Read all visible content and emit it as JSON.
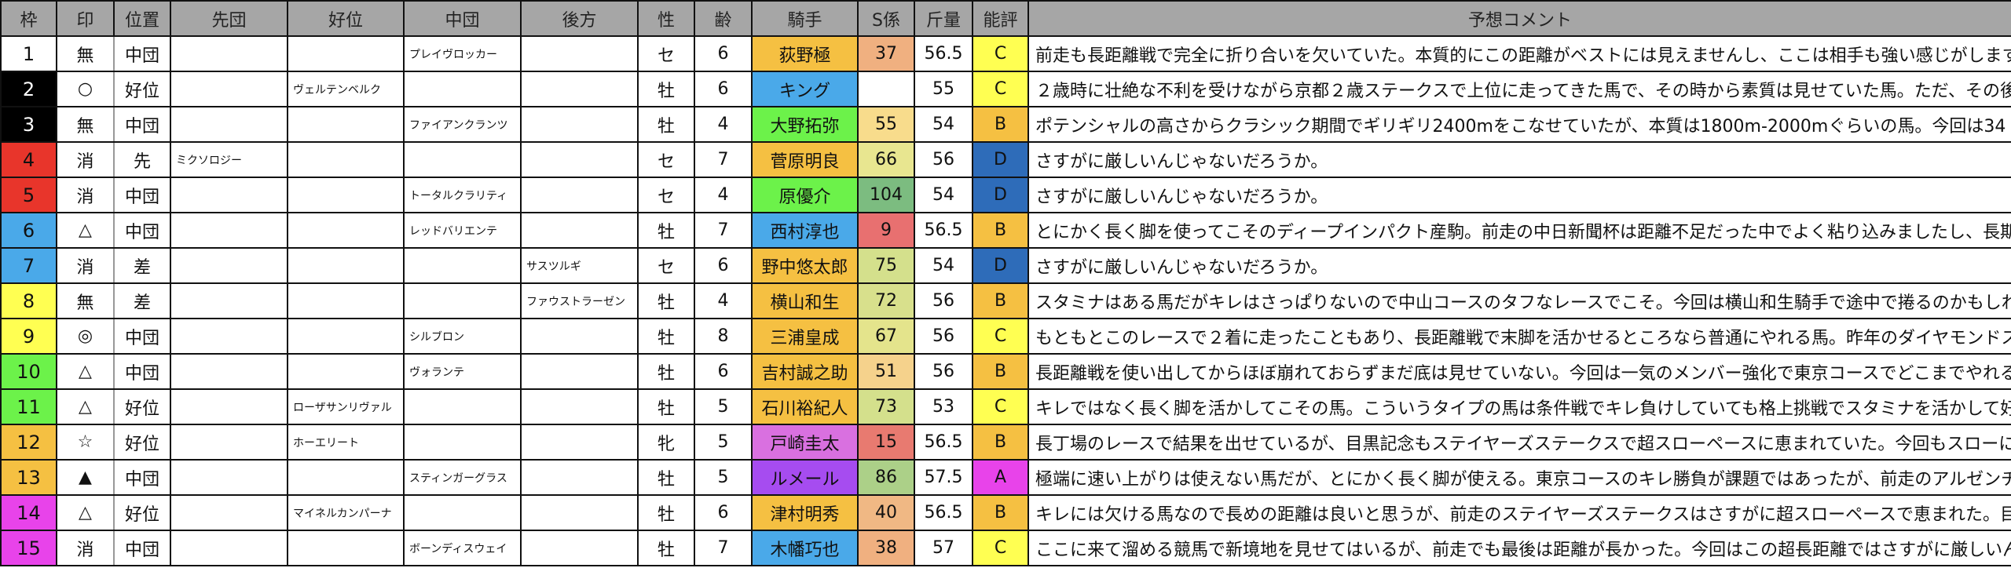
{
  "headers": [
    "枠",
    "印",
    "位置",
    "先団",
    "好位",
    "中団",
    "後方",
    "性",
    "齢",
    "騎手",
    "S係",
    "斤量",
    "能評",
    "予想コメント"
  ],
  "colors": {
    "frame": {
      "1": "#ffffff",
      "2": "#000000",
      "3": "#000000",
      "4": "#e8352b",
      "5": "#e8352b",
      "6": "#4aa9e9",
      "7": "#4aa9e9",
      "8": "#ffff52",
      "9": "#ffff52",
      "10": "#6cf24a",
      "11": "#6cf24a",
      "12": "#f5c042",
      "13": "#f5c042",
      "14": "#e843ea",
      "15": "#e843ea"
    },
    "rating": {
      "A": "#e843ea",
      "B": "#f5c042",
      "C": "#ffff52",
      "D": "#2e6cb9"
    },
    "header_bg": "#a6a6a6"
  },
  "rows": [
    {
      "frame": "1",
      "mark": "無",
      "position": "中団",
      "sendan": "",
      "koui": "",
      "chudan": "プレイヴロッカー",
      "koho": "",
      "sex": "セ",
      "age": "6",
      "jockey": "荻野極",
      "jockey_color": "#f5c042",
      "s": "37",
      "s_color": "#f0b080",
      "weight": "56.5",
      "rating": "C",
      "comment": "前走も長距離戦で完全に折り合いを欠いていた。本質的にこの距離がベストには見えませんし、ここは相手も強い感じがします。"
    },
    {
      "frame": "2",
      "mark": "○",
      "position": "好位",
      "sendan": "",
      "koui": "ヴェルテンベルク",
      "chudan": "",
      "koho": "",
      "sex": "牡",
      "age": "6",
      "jockey": "キング",
      "jockey_color": "#4aa9e9",
      "s": "",
      "s_color": "#ffffff",
      "weight": "55",
      "rating": "C",
      "comment": "２歳時に壮絶な不利を受けながら京都２歳ステークスで上位に走ってきた馬で、その時から素質は見せていた馬。ただ、その後は"
    },
    {
      "frame": "3",
      "mark": "無",
      "position": "中団",
      "sendan": "",
      "koui": "",
      "chudan": "ファイアンクランツ",
      "koho": "",
      "sex": "牡",
      "age": "4",
      "jockey": "大野拓弥",
      "jockey_color": "#6cf24a",
      "s": "55",
      "s_color": "#f8dc8c",
      "weight": "54",
      "rating": "B",
      "comment": "ポテンシャルの高さからクラシック期間でギリギリ2400mをこなせていたが、本質は1800m-2000mぐらいの馬。今回は34"
    },
    {
      "frame": "4",
      "mark": "消",
      "position": "先",
      "sendan": "ミクソロジー",
      "koui": "",
      "chudan": "",
      "koho": "",
      "sex": "セ",
      "age": "7",
      "jockey": "菅原明良",
      "jockey_color": "#f5c042",
      "s": "66",
      "s_color": "#e8e690",
      "weight": "56",
      "rating": "D",
      "comment": "さすがに厳しいんじゃないだろうか。"
    },
    {
      "frame": "5",
      "mark": "消",
      "position": "中団",
      "sendan": "",
      "koui": "",
      "chudan": "トータルクラリティ",
      "koho": "",
      "sex": "セ",
      "age": "4",
      "jockey": "原優介",
      "jockey_color": "#6cf24a",
      "s": "104",
      "s_color": "#7cbc80",
      "weight": "54",
      "rating": "D",
      "comment": "さすがに厳しいんじゃないだろうか。"
    },
    {
      "frame": "6",
      "mark": "△",
      "position": "中団",
      "sendan": "",
      "koui": "",
      "chudan": "レッドバリエンテ",
      "koho": "",
      "sex": "牡",
      "age": "7",
      "jockey": "西村淳也",
      "jockey_color": "#4aa9e9",
      "s": "9",
      "s_color": "#e87070",
      "weight": "56.5",
      "rating": "B",
      "comment": "とにかく長く脚を使ってこそのディープインパクト産駒。前走の中日新聞杯は距離不足だった中でよく粘り込みましたし、長期休"
    },
    {
      "frame": "7",
      "mark": "消",
      "position": "差",
      "sendan": "",
      "koui": "",
      "chudan": "",
      "koho": "サスツルギ",
      "sex": "セ",
      "age": "6",
      "jockey": "野中悠太郎",
      "jockey_color": "#f5c042",
      "s": "75",
      "s_color": "#d4e08c",
      "weight": "54",
      "rating": "D",
      "comment": "さすがに厳しいんじゃないだろうか。"
    },
    {
      "frame": "8",
      "mark": "無",
      "position": "差",
      "sendan": "",
      "koui": "",
      "chudan": "",
      "koho": "ファウストラーゼン",
      "sex": "牡",
      "age": "4",
      "jockey": "横山和生",
      "jockey_color": "#f5c042",
      "s": "72",
      "s_color": "#d8e08c",
      "weight": "56",
      "rating": "B",
      "comment": "スタミナはある馬だがキレはさっぱりないので中山コースのタフなレースでこそ。今回は横山和生騎手で途中で捲るのかもしれな"
    },
    {
      "frame": "9",
      "mark": "◎",
      "position": "中団",
      "sendan": "",
      "koui": "",
      "chudan": "シルブロン",
      "koho": "",
      "sex": "牡",
      "age": "8",
      "jockey": "三浦皇成",
      "jockey_color": "#f5c042",
      "s": "67",
      "s_color": "#e4e48c",
      "weight": "56",
      "rating": "C",
      "comment": "もともとこのレースで２着に走ったこともあり、長距離戦で末脚を活かせるところなら普通にやれる馬。昨年のダイヤモンドステ"
    },
    {
      "frame": "10",
      "mark": "△",
      "position": "中団",
      "sendan": "",
      "koui": "",
      "chudan": "ヴォランテ",
      "koho": "",
      "sex": "牡",
      "age": "6",
      "jockey": "吉村誠之助",
      "jockey_color": "#f5c042",
      "s": "51",
      "s_color": "#f5d28c",
      "weight": "56",
      "rating": "B",
      "comment": "長距離戦を使い出してからほぼ崩れておらずまだ底は見せていない。今回は一気のメンバー強化で東京コースでどこまでやれるか"
    },
    {
      "frame": "11",
      "mark": "△",
      "position": "好位",
      "sendan": "",
      "koui": "ローザサンリヴァル",
      "chudan": "",
      "koho": "",
      "sex": "牡",
      "age": "5",
      "jockey": "石川裕紀人",
      "jockey_color": "#f5c042",
      "s": "73",
      "s_color": "#d4e08c",
      "weight": "53",
      "rating": "C",
      "comment": "キレではなく長く脚を活かしてこその馬。こういうタイプの馬は条件戦でキレ負けしていても格上挑戦でスタミナを活かして好走"
    },
    {
      "frame": "12",
      "mark": "☆",
      "position": "好位",
      "sendan": "",
      "koui": "ホーエリート",
      "chudan": "",
      "koho": "",
      "sex": "牝",
      "age": "5",
      "jockey": "戸崎圭太",
      "jockey_color": "#d970e0",
      "s": "15",
      "s_color": "#e87a70",
      "weight": "56.5",
      "rating": "B",
      "comment": "長丁場のレースで結果を出せているが、目黒記念もステイヤーズステークスで超スローペースに恵まれていた。今回もスローに恵"
    },
    {
      "frame": "13",
      "mark": "▲",
      "position": "中団",
      "sendan": "",
      "koui": "",
      "chudan": "スティンガーグラス",
      "koho": "",
      "sex": "牡",
      "age": "5",
      "jockey": "ルメール",
      "jockey_color": "#a64cf0",
      "s": "86",
      "s_color": "#acd088",
      "weight": "57.5",
      "rating": "A",
      "comment": "極端に速い上がりは使えない馬だが、とにかく長く脚が使える。東京コースのキレ勝負が課題ではあったが、前走のアルゼンチン"
    },
    {
      "frame": "14",
      "mark": "△",
      "position": "好位",
      "sendan": "",
      "koui": "マイネルカンパーナ",
      "chudan": "",
      "koho": "",
      "sex": "牡",
      "age": "6",
      "jockey": "津村明秀",
      "jockey_color": "#f5c042",
      "s": "40",
      "s_color": "#f0b884",
      "weight": "56.5",
      "rating": "B",
      "comment": "キレには欠ける馬なので長めの距離は良いと思うが、前走のステイヤーズステークスはさすがに超スローペースで恵まれた。目黒"
    },
    {
      "frame": "15",
      "mark": "消",
      "position": "中団",
      "sendan": "",
      "koui": "",
      "chudan": "ボーンディスウェイ",
      "koho": "",
      "sex": "牡",
      "age": "7",
      "jockey": "木幡巧也",
      "jockey_color": "#4aa9e9",
      "s": "38",
      "s_color": "#f0b080",
      "weight": "57",
      "rating": "C",
      "comment": "ここに来て溜める競馬で新境地を見せてはいるが、前走でも最後は距離が長かった。今回はこの超長距離ではさすがに厳しいんじ"
    }
  ]
}
